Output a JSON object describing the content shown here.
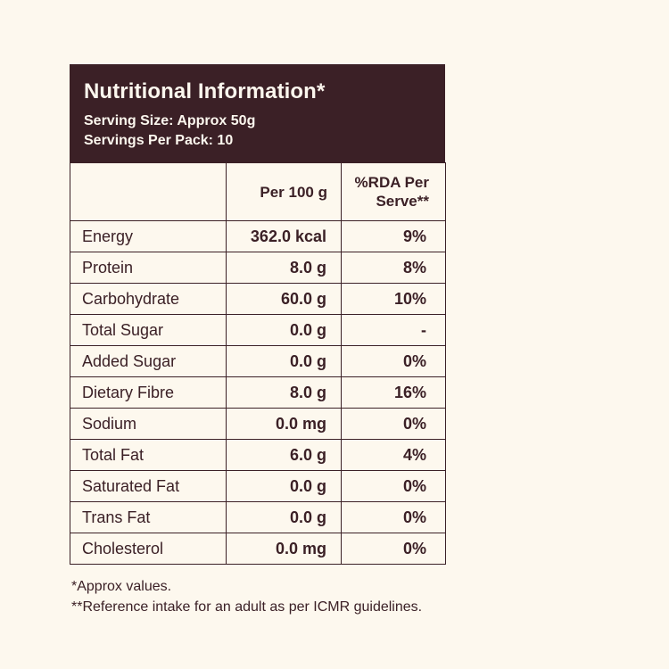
{
  "colors": {
    "page_background": "#fdf8ee",
    "header_background": "#3b2026",
    "header_text": "#fcf7ee",
    "table_text": "#3b2026",
    "table_border": "#3b2026"
  },
  "header": {
    "title": "Nutritional Information*",
    "serving_size": "Serving Size: Approx 50g",
    "servings_per_pack": "Servings Per Pack: 10"
  },
  "table": {
    "columns": [
      "",
      "Per 100 g",
      "%RDA Per Serve**"
    ],
    "rows": [
      {
        "label": "Energy",
        "per_100g": "362.0 kcal",
        "rda": "9%"
      },
      {
        "label": "Protein",
        "per_100g": "8.0 g",
        "rda": "8%"
      },
      {
        "label": "Carbohydrate",
        "per_100g": "60.0 g",
        "rda": "10%"
      },
      {
        "label": "Total Sugar",
        "per_100g": "0.0 g",
        "rda": "-"
      },
      {
        "label": "Added Sugar",
        "per_100g": "0.0 g",
        "rda": "0%"
      },
      {
        "label": "Dietary Fibre",
        "per_100g": "8.0 g",
        "rda": "16%"
      },
      {
        "label": "Sodium",
        "per_100g": "0.0 mg",
        "rda": "0%"
      },
      {
        "label": "Total Fat",
        "per_100g": "6.0 g",
        "rda": "4%"
      },
      {
        "label": "Saturated Fat",
        "per_100g": "0.0 g",
        "rda": "0%"
      },
      {
        "label": "Trans Fat",
        "per_100g": "0.0 g",
        "rda": "0%"
      },
      {
        "label": "Cholesterol",
        "per_100g": "0.0 mg",
        "rda": "0%"
      }
    ]
  },
  "footnotes": {
    "approx": "*Approx values.",
    "reference": "**Reference intake for an adult as per ICMR guidelines."
  }
}
